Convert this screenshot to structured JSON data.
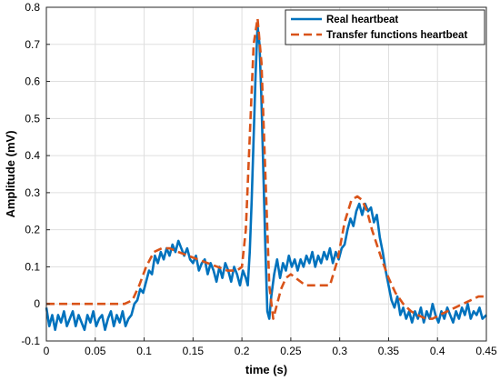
{
  "chart_data": {
    "type": "line",
    "title": "",
    "xlabel": "time (s)",
    "ylabel": "Amplitude (mV)",
    "xlim": [
      0,
      0.45
    ],
    "ylim": [
      -0.1,
      0.8
    ],
    "x_ticks": [
      0,
      0.05,
      0.1,
      0.15,
      0.2,
      0.25,
      0.3,
      0.35,
      0.4,
      0.45
    ],
    "x_tick_labels": [
      "0",
      "0.05",
      "0.1",
      "0.15",
      "0.2",
      "0.25",
      "0.3",
      "0.35",
      "0.4",
      "0.45"
    ],
    "y_ticks": [
      -0.1,
      0,
      0.1,
      0.2,
      0.3,
      0.4,
      0.5,
      0.6,
      0.7,
      0.8
    ],
    "y_tick_labels": [
      "-0.1",
      "0",
      "0.1",
      "0.2",
      "0.3",
      "0.4",
      "0.5",
      "0.6",
      "0.7",
      "0.8"
    ],
    "grid": true,
    "legend_position": "top-right",
    "series": [
      {
        "name": "Real heartbeat",
        "color": "#0072BD",
        "style": "solid",
        "x": [
          0,
          0.003,
          0.006,
          0.009,
          0.012,
          0.015,
          0.018,
          0.021,
          0.024,
          0.027,
          0.03,
          0.033,
          0.036,
          0.039,
          0.042,
          0.045,
          0.048,
          0.051,
          0.054,
          0.057,
          0.06,
          0.063,
          0.066,
          0.069,
          0.072,
          0.075,
          0.078,
          0.081,
          0.084,
          0.087,
          0.09,
          0.093,
          0.096,
          0.099,
          0.102,
          0.105,
          0.108,
          0.111,
          0.114,
          0.117,
          0.12,
          0.123,
          0.126,
          0.129,
          0.132,
          0.135,
          0.138,
          0.141,
          0.144,
          0.147,
          0.15,
          0.153,
          0.156,
          0.159,
          0.162,
          0.165,
          0.168,
          0.171,
          0.174,
          0.177,
          0.18,
          0.183,
          0.186,
          0.189,
          0.192,
          0.195,
          0.198,
          0.201,
          0.204,
          0.206,
          0.208,
          0.21,
          0.212,
          0.214,
          0.216,
          0.218,
          0.22,
          0.222,
          0.224,
          0.226,
          0.228,
          0.23,
          0.233,
          0.236,
          0.239,
          0.242,
          0.245,
          0.248,
          0.251,
          0.254,
          0.257,
          0.26,
          0.263,
          0.266,
          0.269,
          0.272,
          0.275,
          0.278,
          0.281,
          0.284,
          0.287,
          0.29,
          0.293,
          0.296,
          0.299,
          0.302,
          0.305,
          0.308,
          0.311,
          0.314,
          0.317,
          0.32,
          0.323,
          0.326,
          0.329,
          0.332,
          0.335,
          0.338,
          0.341,
          0.344,
          0.347,
          0.35,
          0.353,
          0.356,
          0.359,
          0.362,
          0.365,
          0.368,
          0.371,
          0.374,
          0.377,
          0.38,
          0.383,
          0.386,
          0.389,
          0.392,
          0.395,
          0.398,
          0.401,
          0.404,
          0.407,
          0.41,
          0.413,
          0.416,
          0.419,
          0.422,
          0.425,
          0.428,
          0.431,
          0.434,
          0.437,
          0.44,
          0.443,
          0.446,
          0.45
        ],
        "y": [
          -0.01,
          -0.06,
          -0.03,
          -0.07,
          -0.03,
          -0.05,
          -0.02,
          -0.06,
          -0.04,
          -0.02,
          -0.06,
          -0.03,
          -0.05,
          -0.07,
          -0.03,
          -0.05,
          -0.02,
          -0.06,
          -0.04,
          -0.03,
          -0.07,
          -0.04,
          -0.02,
          -0.06,
          -0.03,
          -0.05,
          -0.02,
          -0.06,
          -0.04,
          -0.03,
          0.0,
          0.01,
          0.04,
          0.03,
          0.06,
          0.09,
          0.08,
          0.13,
          0.11,
          0.14,
          0.12,
          0.15,
          0.13,
          0.16,
          0.14,
          0.17,
          0.15,
          0.13,
          0.15,
          0.12,
          0.11,
          0.13,
          0.09,
          0.11,
          0.12,
          0.08,
          0.11,
          0.09,
          0.06,
          0.1,
          0.07,
          0.11,
          0.09,
          0.06,
          0.1,
          0.08,
          0.05,
          0.09,
          0.07,
          0.05,
          0.14,
          0.28,
          0.45,
          0.62,
          0.75,
          0.7,
          0.55,
          0.35,
          0.15,
          -0.02,
          -0.04,
          0.02,
          0.08,
          0.12,
          0.07,
          0.11,
          0.09,
          0.13,
          0.1,
          0.12,
          0.09,
          0.12,
          0.1,
          0.13,
          0.11,
          0.14,
          0.1,
          0.13,
          0.11,
          0.14,
          0.12,
          0.15,
          0.11,
          0.14,
          0.12,
          0.15,
          0.16,
          0.2,
          0.23,
          0.21,
          0.25,
          0.27,
          0.24,
          0.27,
          0.25,
          0.26,
          0.22,
          0.24,
          0.18,
          0.14,
          0.09,
          0.05,
          0.01,
          -0.01,
          0.02,
          -0.03,
          -0.01,
          -0.04,
          -0.02,
          -0.05,
          -0.02,
          -0.04,
          -0.01,
          -0.05,
          -0.02,
          -0.04,
          0.0,
          -0.03,
          -0.05,
          -0.02,
          -0.04,
          -0.01,
          -0.03,
          -0.05,
          -0.02,
          -0.04,
          -0.01,
          -0.03,
          0.0,
          -0.04,
          -0.02,
          -0.03,
          -0.01,
          -0.04,
          -0.03
        ]
      },
      {
        "name": "Transfer functions heartbeat",
        "color": "#D95319",
        "style": "dashed",
        "x": [
          0,
          0.02,
          0.04,
          0.06,
          0.08,
          0.088,
          0.095,
          0.102,
          0.11,
          0.118,
          0.126,
          0.135,
          0.145,
          0.155,
          0.165,
          0.175,
          0.185,
          0.195,
          0.2,
          0.204,
          0.208,
          0.212,
          0.216,
          0.22,
          0.224,
          0.228,
          0.232,
          0.236,
          0.24,
          0.245,
          0.25,
          0.255,
          0.26,
          0.265,
          0.27,
          0.275,
          0.28,
          0.29,
          0.298,
          0.305,
          0.312,
          0.318,
          0.323,
          0.328,
          0.333,
          0.338,
          0.343,
          0.35,
          0.357,
          0.365,
          0.373,
          0.38,
          0.388,
          0.395,
          0.402,
          0.41,
          0.418,
          0.426,
          0.434,
          0.442,
          0.45
        ],
        "y": [
          0.0,
          0.0,
          0.0,
          0.0,
          0.0,
          0.01,
          0.05,
          0.1,
          0.14,
          0.15,
          0.15,
          0.14,
          0.13,
          0.12,
          0.11,
          0.1,
          0.09,
          0.09,
          0.1,
          0.2,
          0.45,
          0.7,
          0.77,
          0.65,
          0.35,
          0.05,
          -0.04,
          0.0,
          0.04,
          0.07,
          0.08,
          0.07,
          0.06,
          0.05,
          0.05,
          0.05,
          0.05,
          0.05,
          0.12,
          0.22,
          0.28,
          0.29,
          0.28,
          0.25,
          0.2,
          0.16,
          0.12,
          0.07,
          0.03,
          0.0,
          -0.02,
          -0.03,
          -0.04,
          -0.04,
          -0.03,
          -0.02,
          -0.01,
          0.0,
          0.01,
          0.02,
          0.02
        ]
      }
    ]
  }
}
